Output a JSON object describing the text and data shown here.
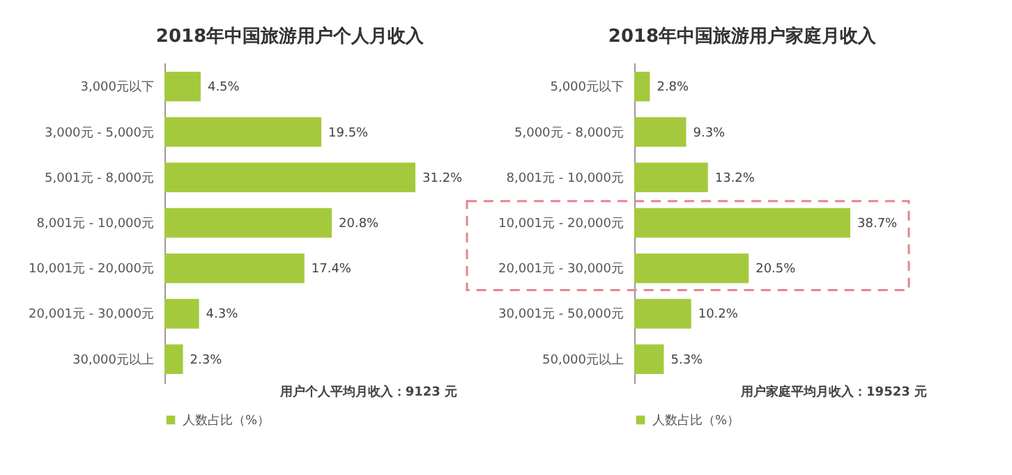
{
  "chart_data": [
    {
      "type": "bar",
      "orientation": "horizontal",
      "title": "2018年中国旅游用户个人月收入",
      "categories": [
        "3,000元以下",
        "3,000元 - 5,000元",
        "5,001元 - 8,000元",
        "8,001元 - 10,000元",
        "10,001元 - 20,000元",
        "20,001元 - 30,000元",
        "30,000元以上"
      ],
      "series": [
        {
          "name": "人数占比（%）",
          "color": "#a5c93d",
          "values": [
            4.5,
            19.5,
            31.2,
            20.8,
            17.4,
            4.3,
            2.3
          ],
          "value_labels": [
            "4.5%",
            "19.5%",
            "31.2%",
            "20.8%",
            "17.4%",
            "4.3%",
            "2.3%"
          ]
        }
      ],
      "annotations": [
        "用户个人平均月收入：9123 元"
      ],
      "legend": "bottom left",
      "grid": false
    },
    {
      "type": "bar",
      "orientation": "horizontal",
      "title": "2018年中国旅游用户家庭月收入",
      "categories": [
        "5,000元以下",
        "5,000元 - 8,000元",
        "8,001元 - 10,000元",
        "10,001元 - 20,000元",
        "20,001元 - 30,000元",
        "30,001元 - 50,000元",
        "50,000元以上"
      ],
      "series": [
        {
          "name": "人数占比（%）",
          "color": "#a5c93d",
          "values": [
            2.8,
            9.3,
            13.2,
            38.7,
            20.5,
            10.2,
            5.3
          ],
          "value_labels": [
            "2.8%",
            "9.3%",
            "13.2%",
            "38.7%",
            "20.5%",
            "10.2%",
            "5.3%"
          ]
        }
      ],
      "annotations": [
        "用户家庭平均月收入：19523 元"
      ],
      "legend": "bottom left",
      "grid": false
    }
  ]
}
